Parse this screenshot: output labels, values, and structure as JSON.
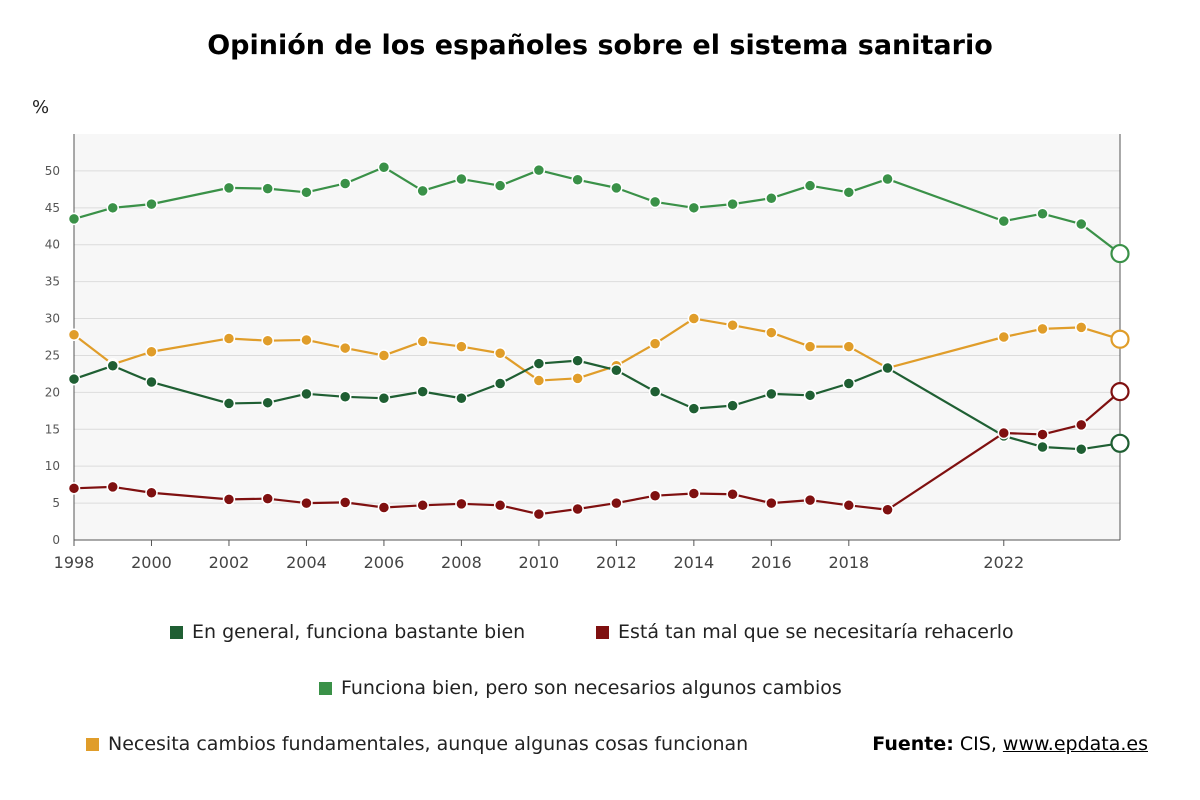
{
  "chart_data": {
    "type": "line",
    "title": "Opinión de los españoles sobre el sistema sanitario",
    "ylabel": "%",
    "ylim": [
      0,
      55
    ],
    "yticks": [
      0,
      5,
      10,
      15,
      20,
      25,
      30,
      35,
      40,
      45,
      50
    ],
    "xlim": [
      1998,
      2025
    ],
    "xticks": [
      1998,
      2000,
      2002,
      2004,
      2006,
      2008,
      2010,
      2012,
      2014,
      2016,
      2018,
      2022
    ],
    "grid": true,
    "legend_position": "bottom",
    "series": [
      {
        "name": "En general, funciona bastante bien",
        "color": "#1f5f33",
        "x": [
          1998,
          1999,
          2000,
          2002,
          2003,
          2004,
          2005,
          2006,
          2007,
          2008,
          2009,
          2010,
          2011,
          2012,
          2013,
          2014,
          2015,
          2016,
          2017,
          2018,
          2019,
          2022,
          2023,
          2024,
          2025
        ],
        "values": [
          21.8,
          23.6,
          21.4,
          18.5,
          18.6,
          19.8,
          19.4,
          19.2,
          20.1,
          19.2,
          21.2,
          23.9,
          24.3,
          23.0,
          20.1,
          17.8,
          18.2,
          19.8,
          19.6,
          21.2,
          23.3,
          14.1,
          12.6,
          12.3,
          13.1
        ]
      },
      {
        "name": "Está tan mal que se necesitaría rehacerlo",
        "color": "#7f1010",
        "x": [
          1998,
          1999,
          2000,
          2002,
          2003,
          2004,
          2005,
          2006,
          2007,
          2008,
          2009,
          2010,
          2011,
          2012,
          2013,
          2014,
          2015,
          2016,
          2017,
          2018,
          2019,
          2022,
          2023,
          2024,
          2025
        ],
        "values": [
          7.0,
          7.2,
          6.4,
          5.5,
          5.6,
          5.0,
          5.1,
          4.4,
          4.7,
          4.9,
          4.7,
          3.5,
          4.2,
          5.0,
          6.0,
          6.3,
          6.2,
          5.0,
          5.4,
          4.7,
          4.1,
          14.5,
          14.3,
          15.6,
          20.1
        ]
      },
      {
        "name": "Funciona bien, pero son necesarios algunos cambios",
        "color": "#3a9148",
        "x": [
          1998,
          1999,
          2000,
          2002,
          2003,
          2004,
          2005,
          2006,
          2007,
          2008,
          2009,
          2010,
          2011,
          2012,
          2013,
          2014,
          2015,
          2016,
          2017,
          2018,
          2019,
          2022,
          2023,
          2024,
          2025
        ],
        "values": [
          43.5,
          45.0,
          45.5,
          47.7,
          47.6,
          47.1,
          48.3,
          50.5,
          47.3,
          48.9,
          48.0,
          50.1,
          48.8,
          47.7,
          45.8,
          45.0,
          45.5,
          46.3,
          48.0,
          47.1,
          48.9,
          43.2,
          44.2,
          42.8,
          38.8
        ]
      },
      {
        "name": "Necesita cambios fundamentales, aunque algunas cosas funcionan",
        "color": "#e09d2a",
        "x": [
          1998,
          1999,
          2000,
          2002,
          2003,
          2004,
          2005,
          2006,
          2007,
          2008,
          2009,
          2010,
          2011,
          2012,
          2013,
          2014,
          2015,
          2016,
          2017,
          2018,
          2019,
          2022,
          2023,
          2024,
          2025
        ],
        "values": [
          27.8,
          23.8,
          25.5,
          27.3,
          27.0,
          27.1,
          26.0,
          25.0,
          26.9,
          26.2,
          25.3,
          21.6,
          21.9,
          23.6,
          26.6,
          30.0,
          29.1,
          28.1,
          26.2,
          26.2,
          23.3,
          27.5,
          28.6,
          28.8,
          27.2
        ]
      }
    ],
    "draw_order": [
      3,
      0,
      1,
      2
    ]
  },
  "source": {
    "label": "Fuente:",
    "text": " CIS, ",
    "link": "www.epdata.es"
  }
}
